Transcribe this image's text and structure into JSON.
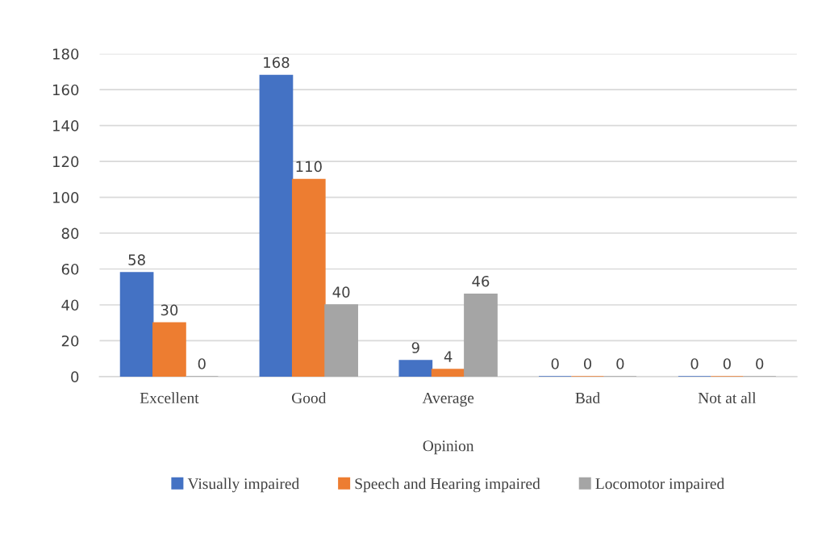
{
  "chart_data": {
    "type": "bar",
    "xlabel": "Opinion",
    "categories": [
      "Excellent",
      "Good",
      "Average",
      "Bad",
      "Not at all"
    ],
    "series": [
      {
        "name": "Visually impaired",
        "color": "#4472c4",
        "values": [
          58,
          168,
          9,
          0,
          0
        ]
      },
      {
        "name": "Speech and Hearing impaired",
        "color": "#ed7d31",
        "values": [
          30,
          110,
          4,
          0,
          0
        ]
      },
      {
        "name": "Locomotor impaired",
        "color": "#a5a5a5",
        "values": [
          0,
          40,
          46,
          0,
          0
        ]
      }
    ],
    "ylim": [
      0,
      180
    ],
    "yticks": [
      0,
      20,
      40,
      60,
      80,
      100,
      120,
      140,
      160,
      180
    ],
    "grid": "y",
    "legend": "bottom",
    "data_labels": true
  }
}
